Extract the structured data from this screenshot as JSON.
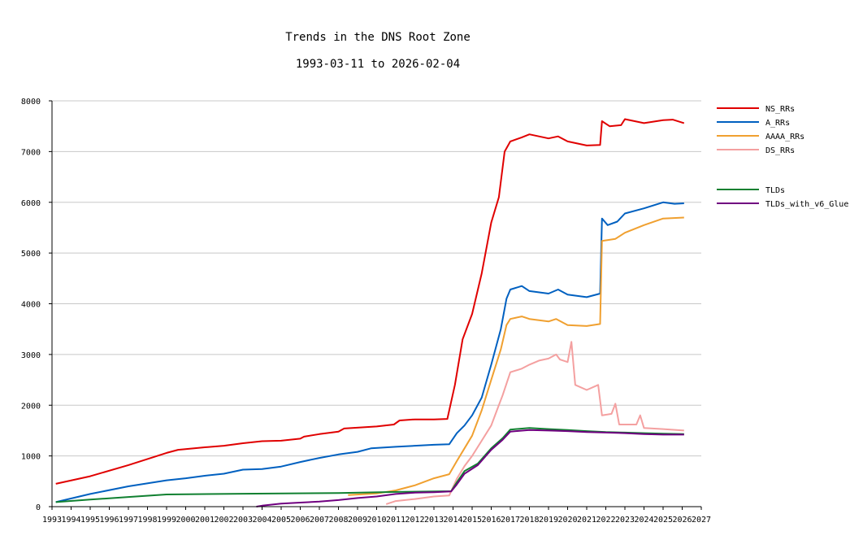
{
  "chart_data": {
    "type": "line",
    "title": "Trends in the DNS Root Zone",
    "subtitle": "1993-03-11 to 2026-02-04",
    "xlabel": "",
    "ylabel": "",
    "xlim": [
      1993,
      2027
    ],
    "ylim": [
      0,
      8000
    ],
    "yticks": [
      0,
      1000,
      2000,
      3000,
      4000,
      5000,
      6000,
      7000,
      8000
    ],
    "xticks": [
      "1993",
      "1994",
      "1995",
      "1996",
      "1997",
      "1998",
      "1999",
      "2000",
      "2001",
      "2002",
      "2003",
      "2004",
      "2005",
      "2006",
      "2007",
      "2008",
      "2009",
      "2010",
      "2011",
      "2012",
      "2013",
      "2014",
      "2015",
      "2016",
      "2017",
      "2018",
      "2019",
      "2020",
      "2021",
      "2022",
      "2023",
      "2024",
      "2025",
      "2026",
      "2027"
    ],
    "grid": true,
    "legend_position": "right",
    "series": [
      {
        "name": "NS_RRs",
        "color": "#e00000",
        "legend_group": 1,
        "points": [
          [
            1993.2,
            450
          ],
          [
            1995,
            600
          ],
          [
            1997,
            820
          ],
          [
            1999,
            1060
          ],
          [
            1999.6,
            1120
          ],
          [
            2001,
            1170
          ],
          [
            2002,
            1200
          ],
          [
            2003,
            1250
          ],
          [
            2004,
            1290
          ],
          [
            2005,
            1300
          ],
          [
            2006,
            1340
          ],
          [
            2006.2,
            1380
          ],
          [
            2007,
            1430
          ],
          [
            2008,
            1480
          ],
          [
            2008.3,
            1540
          ],
          [
            2010,
            1580
          ],
          [
            2010.9,
            1620
          ],
          [
            2011.2,
            1700
          ],
          [
            2012,
            1720
          ],
          [
            2013,
            1720
          ],
          [
            2013.7,
            1730
          ],
          [
            2014.1,
            2400
          ],
          [
            2014.5,
            3300
          ],
          [
            2015,
            3800
          ],
          [
            2015.5,
            4600
          ],
          [
            2016,
            5600
          ],
          [
            2016.4,
            6100
          ],
          [
            2016.7,
            7000
          ],
          [
            2017,
            7200
          ],
          [
            2017.6,
            7280
          ],
          [
            2018,
            7340
          ],
          [
            2019,
            7260
          ],
          [
            2019.5,
            7300
          ],
          [
            2020,
            7200
          ],
          [
            2021,
            7120
          ],
          [
            2021.7,
            7130
          ],
          [
            2021.8,
            7600
          ],
          [
            2022.2,
            7500
          ],
          [
            2022.8,
            7520
          ],
          [
            2023,
            7640
          ],
          [
            2024,
            7560
          ],
          [
            2025,
            7620
          ],
          [
            2025.5,
            7630
          ],
          [
            2026.1,
            7560
          ]
        ]
      },
      {
        "name": "A_RRs",
        "color": "#0060c0",
        "legend_group": 1,
        "points": [
          [
            1993.2,
            90
          ],
          [
            1995,
            250
          ],
          [
            1997,
            400
          ],
          [
            1999,
            520
          ],
          [
            2000,
            560
          ],
          [
            2001,
            610
          ],
          [
            2002,
            650
          ],
          [
            2003,
            730
          ],
          [
            2004,
            740
          ],
          [
            2005,
            790
          ],
          [
            2006,
            880
          ],
          [
            2007,
            960
          ],
          [
            2008,
            1030
          ],
          [
            2009,
            1080
          ],
          [
            2009.7,
            1150
          ],
          [
            2011,
            1180
          ],
          [
            2013,
            1220
          ],
          [
            2013.8,
            1230
          ],
          [
            2014.2,
            1450
          ],
          [
            2014.6,
            1600
          ],
          [
            2015,
            1800
          ],
          [
            2015.5,
            2150
          ],
          [
            2016,
            2800
          ],
          [
            2016.5,
            3500
          ],
          [
            2016.8,
            4100
          ],
          [
            2017,
            4280
          ],
          [
            2017.6,
            4350
          ],
          [
            2018,
            4250
          ],
          [
            2019,
            4200
          ],
          [
            2019.5,
            4280
          ],
          [
            2020,
            4180
          ],
          [
            2021,
            4130
          ],
          [
            2021.7,
            4200
          ],
          [
            2021.8,
            5680
          ],
          [
            2022.1,
            5550
          ],
          [
            2022.6,
            5620
          ],
          [
            2023,
            5780
          ],
          [
            2024,
            5880
          ],
          [
            2025,
            6000
          ],
          [
            2025.6,
            5970
          ],
          [
            2026.1,
            5980
          ]
        ]
      },
      {
        "name": "AAAA_RRs",
        "color": "#f0a030",
        "legend_group": 1,
        "points": [
          [
            2008.5,
            230
          ],
          [
            2010,
            260
          ],
          [
            2011,
            320
          ],
          [
            2012,
            420
          ],
          [
            2013,
            560
          ],
          [
            2013.8,
            640
          ],
          [
            2014.2,
            900
          ],
          [
            2014.6,
            1150
          ],
          [
            2015,
            1400
          ],
          [
            2015.5,
            1900
          ],
          [
            2016,
            2500
          ],
          [
            2016.5,
            3100
          ],
          [
            2016.8,
            3580
          ],
          [
            2017,
            3700
          ],
          [
            2017.6,
            3750
          ],
          [
            2018,
            3700
          ],
          [
            2019,
            3650
          ],
          [
            2019.4,
            3700
          ],
          [
            2020,
            3580
          ],
          [
            2021,
            3560
          ],
          [
            2021.7,
            3600
          ],
          [
            2021.8,
            5240
          ],
          [
            2022.5,
            5280
          ],
          [
            2023,
            5400
          ],
          [
            2024,
            5550
          ],
          [
            2025,
            5680
          ],
          [
            2026.1,
            5700
          ]
        ]
      },
      {
        "name": "DS_RRs",
        "color": "#f4a0a0",
        "legend_group": 1,
        "points": [
          [
            2010.5,
            50
          ],
          [
            2011,
            110
          ],
          [
            2012,
            150
          ],
          [
            2013,
            200
          ],
          [
            2013.8,
            220
          ],
          [
            2014.2,
            550
          ],
          [
            2014.6,
            800
          ],
          [
            2015,
            1000
          ],
          [
            2015.5,
            1300
          ],
          [
            2016,
            1600
          ],
          [
            2016.3,
            1900
          ],
          [
            2016.6,
            2200
          ],
          [
            2017,
            2650
          ],
          [
            2017.6,
            2720
          ],
          [
            2018,
            2800
          ],
          [
            2018.5,
            2880
          ],
          [
            2019,
            2920
          ],
          [
            2019.4,
            3000
          ],
          [
            2019.6,
            2900
          ],
          [
            2020,
            2850
          ],
          [
            2020.2,
            3250
          ],
          [
            2020.4,
            2400
          ],
          [
            2021,
            2300
          ],
          [
            2021.6,
            2400
          ],
          [
            2021.8,
            1800
          ],
          [
            2022.3,
            1830
          ],
          [
            2022.5,
            2030
          ],
          [
            2022.7,
            1620
          ],
          [
            2023.6,
            1620
          ],
          [
            2023.8,
            1800
          ],
          [
            2024,
            1550
          ],
          [
            2025,
            1530
          ],
          [
            2026.1,
            1500
          ]
        ]
      },
      {
        "name": "TLDs",
        "color": "#108030",
        "legend_group": 2,
        "points": [
          [
            1993.2,
            90
          ],
          [
            1995,
            140
          ],
          [
            1997,
            190
          ],
          [
            1999,
            240
          ],
          [
            2003,
            255
          ],
          [
            2008,
            270
          ],
          [
            2011,
            290
          ],
          [
            2013.9,
            305
          ],
          [
            2014.2,
            480
          ],
          [
            2014.6,
            700
          ],
          [
            2015.3,
            850
          ],
          [
            2016,
            1150
          ],
          [
            2016.6,
            1350
          ],
          [
            2017,
            1520
          ],
          [
            2018,
            1550
          ],
          [
            2019,
            1530
          ],
          [
            2020,
            1510
          ],
          [
            2021,
            1490
          ],
          [
            2022,
            1470
          ],
          [
            2023,
            1460
          ],
          [
            2024,
            1450
          ],
          [
            2025,
            1440
          ],
          [
            2026.1,
            1430
          ]
        ]
      },
      {
        "name": "TLDs_with_v6_Glue",
        "color": "#700080",
        "legend_group": 2,
        "points": [
          [
            2003.7,
            0
          ],
          [
            2004,
            20
          ],
          [
            2005,
            60
          ],
          [
            2006,
            80
          ],
          [
            2007,
            100
          ],
          [
            2008,
            130
          ],
          [
            2009,
            170
          ],
          [
            2010,
            200
          ],
          [
            2011,
            250
          ],
          [
            2012,
            275
          ],
          [
            2013,
            285
          ],
          [
            2013.9,
            300
          ],
          [
            2014.2,
            440
          ],
          [
            2014.6,
            650
          ],
          [
            2015.3,
            820
          ],
          [
            2016,
            1120
          ],
          [
            2016.6,
            1320
          ],
          [
            2017,
            1480
          ],
          [
            2018,
            1510
          ],
          [
            2019,
            1500
          ],
          [
            2020,
            1490
          ],
          [
            2021,
            1470
          ],
          [
            2022,
            1460
          ],
          [
            2023,
            1450
          ],
          [
            2024,
            1430
          ],
          [
            2025,
            1420
          ],
          [
            2026.1,
            1420
          ]
        ]
      }
    ]
  },
  "colors": {
    "grid": "#c8c8c8",
    "axis": "#000000",
    "background": "#ffffff"
  }
}
